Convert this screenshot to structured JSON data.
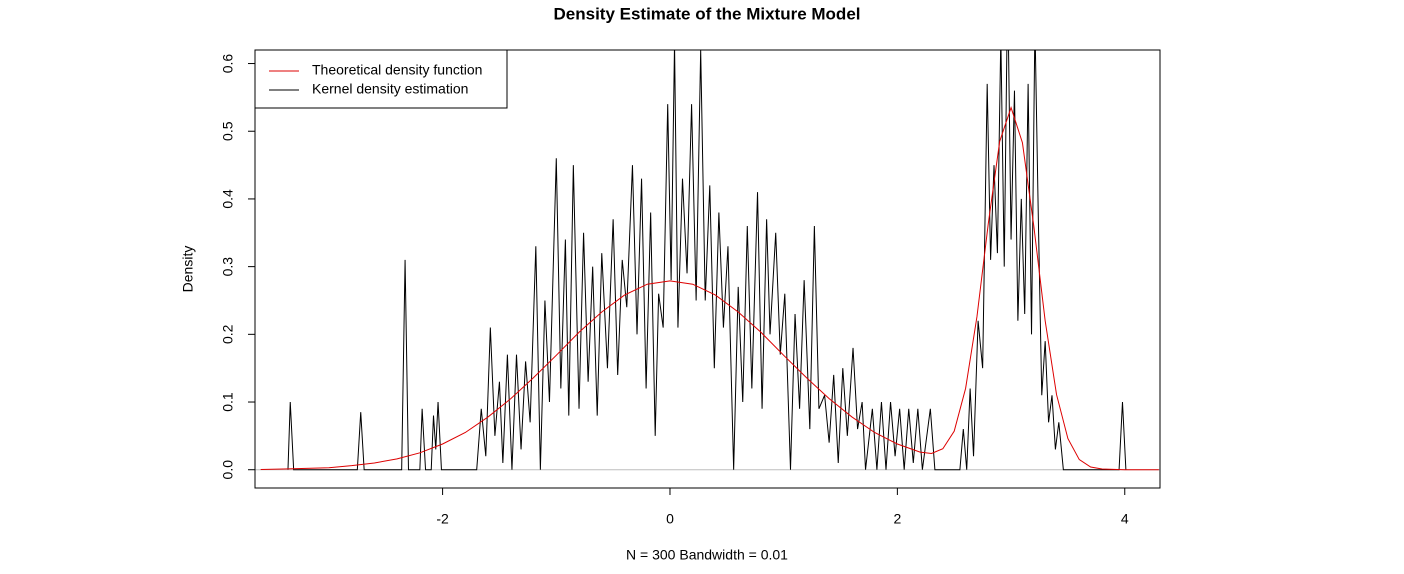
{
  "chart_data": {
    "type": "line",
    "title": "Density Estimate of the Mixture Model",
    "x_label": "N = 300   Bandwidth = 0.01",
    "y_label": "Density",
    "xlim": [
      -3.65,
      4.31
    ],
    "ylim": [
      -0.027,
      0.62
    ],
    "xticks": [
      -2,
      0,
      2,
      4
    ],
    "yticks": [
      {
        "value": 0,
        "label": "0.0"
      },
      {
        "value": 0.1,
        "label": "0.1"
      },
      {
        "value": 0.2,
        "label": "0.2"
      },
      {
        "value": 0.3,
        "label": "0.3"
      },
      {
        "value": 0.4,
        "label": "0.4"
      },
      {
        "value": 0.5,
        "label": "0.5"
      },
      {
        "value": 0.6,
        "label": "0.6"
      }
    ],
    "grid": false,
    "legend": "top-left",
    "series": [
      {
        "name": "Theoretical density function",
        "color": "#dd0000",
        "x": [
          -3.6,
          -3.4,
          -3.2,
          -3.0,
          -2.8,
          -2.6,
          -2.4,
          -2.2,
          -2.0,
          -1.8,
          -1.6,
          -1.4,
          -1.2,
          -1.0,
          -0.8,
          -0.6,
          -0.4,
          -0.2,
          0,
          0.2,
          0.4,
          0.6,
          0.8,
          1.0,
          1.2,
          1.4,
          1.6,
          1.8,
          2.0,
          2.2,
          2.3,
          2.4,
          2.5,
          2.6,
          2.7,
          2.8,
          2.9,
          3.0,
          3.1,
          3.2,
          3.3,
          3.4,
          3.5,
          3.6,
          3.7,
          3.8,
          4.0,
          4.3
        ],
        "values": [
          0.0004,
          0.001,
          0.002,
          0.003,
          0.006,
          0.01,
          0.016,
          0.025,
          0.038,
          0.055,
          0.078,
          0.105,
          0.136,
          0.169,
          0.203,
          0.233,
          0.258,
          0.274,
          0.279,
          0.274,
          0.258,
          0.233,
          0.203,
          0.169,
          0.136,
          0.105,
          0.078,
          0.055,
          0.038,
          0.026,
          0.024,
          0.031,
          0.057,
          0.12,
          0.226,
          0.364,
          0.485,
          0.535,
          0.483,
          0.36,
          0.22,
          0.111,
          0.046,
          0.015,
          0.004,
          0.001,
          0,
          0
        ]
      },
      {
        "name": "Kernel density estimation",
        "color": "#000000",
        "x": [
          -3.36,
          -3.34,
          -3.31,
          -2.75,
          -2.72,
          -2.69,
          -2.36,
          -2.33,
          -2.3,
          -2.2,
          -2.18,
          -2.15,
          -2.1,
          -2.08,
          -2.06,
          -2.04,
          -2.01,
          -1.7,
          -1.66,
          -1.62,
          -1.58,
          -1.54,
          -1.5,
          -1.47,
          -1.43,
          -1.39,
          -1.35,
          -1.31,
          -1.27,
          -1.23,
          -1.18,
          -1.14,
          -1.1,
          -1.06,
          -1.0,
          -0.96,
          -0.92,
          -0.89,
          -0.85,
          -0.8,
          -0.76,
          -0.72,
          -0.68,
          -0.64,
          -0.6,
          -0.55,
          -0.5,
          -0.46,
          -0.42,
          -0.38,
          -0.33,
          -0.29,
          -0.25,
          -0.21,
          -0.17,
          -0.13,
          -0.1,
          -0.06,
          -0.02,
          0.01,
          0.04,
          0.07,
          0.11,
          0.15,
          0.19,
          0.23,
          0.27,
          0.31,
          0.35,
          0.39,
          0.43,
          0.47,
          0.51,
          0.56,
          0.6,
          0.64,
          0.68,
          0.72,
          0.77,
          0.81,
          0.85,
          0.88,
          0.93,
          0.97,
          1.01,
          1.06,
          1.1,
          1.14,
          1.18,
          1.23,
          1.27,
          1.31,
          1.36,
          1.4,
          1.44,
          1.48,
          1.52,
          1.56,
          1.61,
          1.65,
          1.69,
          1.72,
          1.78,
          1.82,
          1.86,
          1.9,
          1.94,
          1.98,
          2.02,
          2.06,
          2.1,
          2.14,
          2.18,
          2.22,
          2.29,
          2.33,
          2.55,
          2.58,
          2.61,
          2.64,
          2.67,
          2.71,
          2.75,
          2.79,
          2.82,
          2.85,
          2.88,
          2.91,
          2.94,
          2.97,
          3.0,
          3.03,
          3.06,
          3.09,
          3.12,
          3.15,
          3.18,
          3.21,
          3.24,
          3.27,
          3.3,
          3.33,
          3.36,
          3.39,
          3.42,
          3.46,
          3.95,
          3.98,
          4.01
        ],
        "values": [
          0,
          0.1,
          0,
          0,
          0.085,
          0,
          0,
          0.31,
          0,
          0,
          0.09,
          0,
          0,
          0.08,
          0.03,
          0.1,
          0,
          0,
          0.09,
          0.02,
          0.21,
          0.05,
          0.13,
          0.01,
          0.17,
          0,
          0.17,
          0.03,
          0.16,
          0.07,
          0.33,
          0,
          0.25,
          0.1,
          0.46,
          0.12,
          0.34,
          0.08,
          0.45,
          0.09,
          0.35,
          0.13,
          0.3,
          0.08,
          0.32,
          0.15,
          0.37,
          0.14,
          0.31,
          0.24,
          0.45,
          0.2,
          0.43,
          0.12,
          0.38,
          0.05,
          0.26,
          0.21,
          0.54,
          0.28,
          0.63,
          0.21,
          0.43,
          0.29,
          0.54,
          0.25,
          0.62,
          0.25,
          0.42,
          0.15,
          0.38,
          0.21,
          0.33,
          0,
          0.27,
          0.1,
          0.36,
          0.12,
          0.41,
          0.09,
          0.37,
          0.2,
          0.35,
          0.17,
          0.26,
          0,
          0.23,
          0.09,
          0.28,
          0.06,
          0.36,
          0.09,
          0.11,
          0.04,
          0.14,
          0.01,
          0.15,
          0.05,
          0.18,
          0.06,
          0.1,
          0,
          0.09,
          0,
          0.1,
          0,
          0.1,
          0.02,
          0.09,
          0,
          0.09,
          0.01,
          0.09,
          0,
          0.09,
          0,
          0,
          0.06,
          0,
          0.12,
          0.02,
          0.22,
          0.15,
          0.57,
          0.31,
          0.45,
          0.32,
          0.64,
          0.3,
          0.72,
          0.34,
          0.56,
          0.22,
          0.4,
          0.23,
          0.57,
          0.2,
          0.66,
          0.37,
          0.11,
          0.19,
          0.07,
          0.11,
          0.03,
          0.07,
          0,
          0,
          0.1,
          0
        ]
      }
    ]
  }
}
